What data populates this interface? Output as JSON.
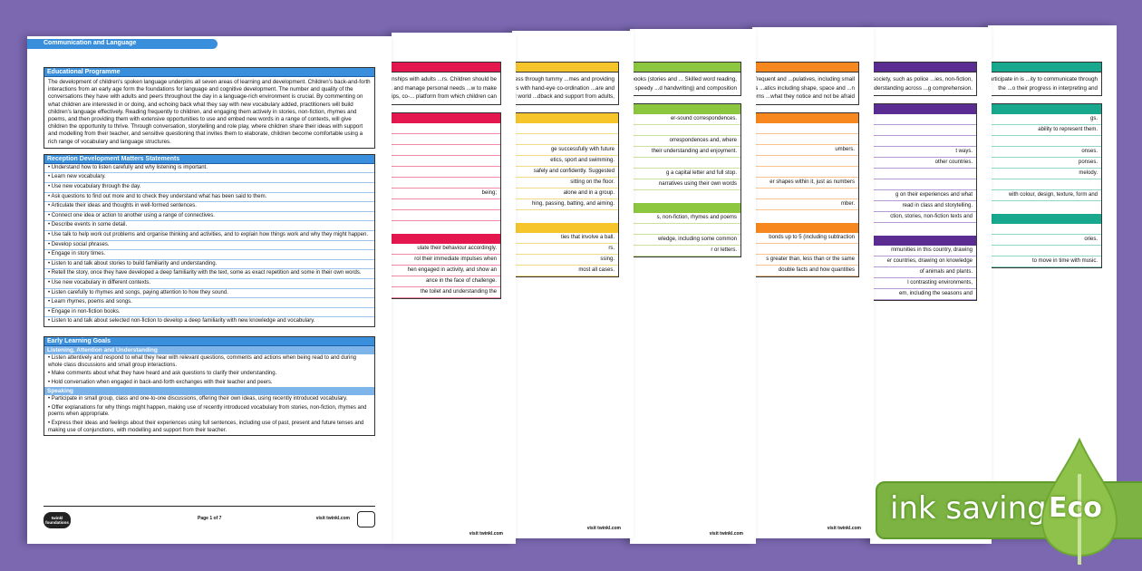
{
  "front": {
    "tab": "Communication and Language",
    "programme": {
      "title": "Educational Programme",
      "text": "The development of children's spoken language underpins all seven areas of learning and development. Children's back-and-forth interactions from an early age form the foundations for language and cognitive development. The number and quality of the conversations they have with adults and peers throughout the day in a language-rich environment is crucial. By commenting on what children are interested in or doing, and echoing back what they say with new vocabulary added, practitioners will build children's language effectively. Reading frequently to children, and engaging them actively in stories, non-fiction, rhymes and poems, and then providing them with extensive opportunities to use and embed new words in a range of contexts, will give children the opportunity to thrive. Through conversation, storytelling and role play, where children share their ideas with support and modelling from their teacher, and sensitive questioning that invites them to elaborate, children become comfortable using a rich range of vocabulary and language structures."
    },
    "statements": {
      "title": "Reception Development Matters Statements",
      "items": [
        "Understand how to listen carefully and why listening is important.",
        "Learn new vocabulary.",
        "Use new vocabulary through the day.",
        "Ask questions to find out more and to check they understand what has been said to them.",
        "Articulate their ideas and thoughts in well-formed sentences.",
        "Connect one idea or action to another using a range of connectives.",
        "Describe events in some detail.",
        "Use talk to help work out problems and organise thinking and activities, and to explain how things work and why they might happen.",
        "Develop social phrases.",
        "Engage in story times.",
        "Listen to and talk about stories to build familiarity and understanding.",
        "Retell the story, once they have developed a deep familiarity with the text, some as exact repetition and some in their own words.",
        "Use new vocabulary in different contexts.",
        "Listen carefully to rhymes and songs, paying attention to how they sound.",
        "Learn rhymes, poems and songs.",
        "Engage in non-fiction books.",
        "Listen to and talk about selected non-fiction to develop a deep familiarity with new knowledge and vocabulary."
      ]
    },
    "goals": {
      "title": "Early Learning Goals",
      "listening": {
        "title": "Listening, Attention and Understanding",
        "items": [
          "Listen attentively and respond to what they hear with relevant questions, comments and actions when being read to and during whole class discussions and small group interactions.",
          "Make comments about what they have heard and ask questions to clarify their understanding.",
          "Hold conversation when engaged in back-and-forth exchanges with their teacher and peers."
        ]
      },
      "speaking": {
        "title": "Speaking",
        "items": [
          "Participate in small group, class and one-to-one discussions, offering their own ideas, using recently introduced vocabulary.",
          "Offer explanations for why things might happen, making use of recently introduced vocabulary from stories, non-fiction, rhymes and poems when appropriate.",
          "Express their ideas and feelings about their experiences using full sentences, including use of past, present and future tenses and making use of conjunctions, with modelling and support from their teacher."
        ]
      }
    },
    "footer": {
      "logo": "twinkl foundations",
      "page": "Page 1 of 7",
      "visit": "visit twinkl.com"
    }
  },
  "back_pages": [
    {
      "color": "#e4174f",
      "line": "#f08aa6",
      "para": "...ildren to lead healthy and happy ...rsonal development are the ...tive relationships with adults ...rs. Children should be supported ...oals, have confidence in their own ...y. Through adult modelling and ..., and manage personal needs ...w to make good friendships, co-... platform from which children can",
      "lines": [
        "",
        "",
        "",
        "",
        "",
        "",
        "being;",
        "",
        "",
        "ulate their behaviour accordingly.",
        "rol their immediate impulses when",
        "hen engaged in activity, and show an",
        "ance in the face of challenge.",
        "the toilet and understanding the"
      ]
    },
    {
      "color": "#f5c52b",
      "line": "#f3dc86",
      "para": "...rsue happy, healthy and active ... childhood, starting with sensory ...onal awareness through tummy ...mes and providing opportunities ... core strength, stability, balance, ...dation for developing healthy ...lps with hand-eye co-ordination ...are and play with small world ...dback and support from adults,",
      "lines": [
        "",
        "",
        "ge successfully with future",
        "etics, sport and swimming.",
        "safely and confidently. Suggested",
        "sitting on the floor.",
        "alone and in a group.",
        "hing, passing, batting, and aiming.",
        "ties that involve a ball.",
        "rs.",
        "ssing.",
        "most all cases."
      ]
    },
    {
      "color": "#8dc63f",
      "line": "#c8e39e",
      "para": "...of two dimensions: language ...th reading and writing) starts from ...m and the books (stories and ... Skilled word reading, taught later, ... words (decoding) and the speedy ...d handwriting) and composition",
      "lines": [
        "er-sound correspondences.",
        "",
        "orrespondences and, where",
        "their understanding and enjoyment.",
        "",
        "g a capital letter and full stop.",
        "narratives using their own words",
        "s, non-fiction, rhymes and poems",
        "",
        "wledge, including some common",
        "r or letters."
      ]
    },
    {
      "color": "#f7871f",
      "line": "#f9c38d",
      "para": "...p the necessary building blocks ...deep understanding of the ...umbers. By providing frequent and ...pulatives, including small pebbles ...knowledge and vocabulary from ...culum includes rich opportunities ...atics including shape, space and ...n mathematics, look for patterns ...what they notice and not be afraid",
      "lines": [
        "",
        "",
        "umbers.",
        "",
        "",
        "er shapes within it, just as numbers",
        "",
        "mber.",
        "bonds up to 5 (including subtraction",
        "",
        "s greater than, less than or the same",
        "double facts and how quantities"
      ]
    },
    {
      "color": "#5b2c91",
      "line": "#b59ad6",
      "para": "...cal world and their community. The ...ge and sense of the world around ...ers of society, such as police ...ies, non-fiction, rhymes and ...nd ecologically diverse world. As ...hat support understanding across ...g comprehension.",
      "lines": [
        "",
        "",
        "",
        "t ways.",
        "other countries.",
        "",
        "",
        "g on their experiences and what",
        "read in class and storytelling.",
        "ction, stories, non-fiction texts and",
        "mmunities in this country, drawing",
        "er countries, drawing on knowledge",
        "of animals and plants.",
        "l contrasting environments,",
        "em, including the seasons and"
      ]
    },
    {
      "color": "#17a88e",
      "line": "#8fd6c6",
      "para": "...agination and creativity. It is ...ling them to explore and play ...ten see, hear and participate in is ...ity to communicate through the ...o their progress in interpreting and",
      "lines": [
        "gs.",
        "ability to represent them.",
        "",
        "onses.",
        "ponses.",
        "melody.",
        "",
        "with colour, design, texture, form and",
        "",
        "ories.",
        "",
        "to move in time with music."
      ]
    }
  ],
  "badge": {
    "label": "ink saving",
    "eco": "Eco",
    "color": "#7cb342"
  }
}
